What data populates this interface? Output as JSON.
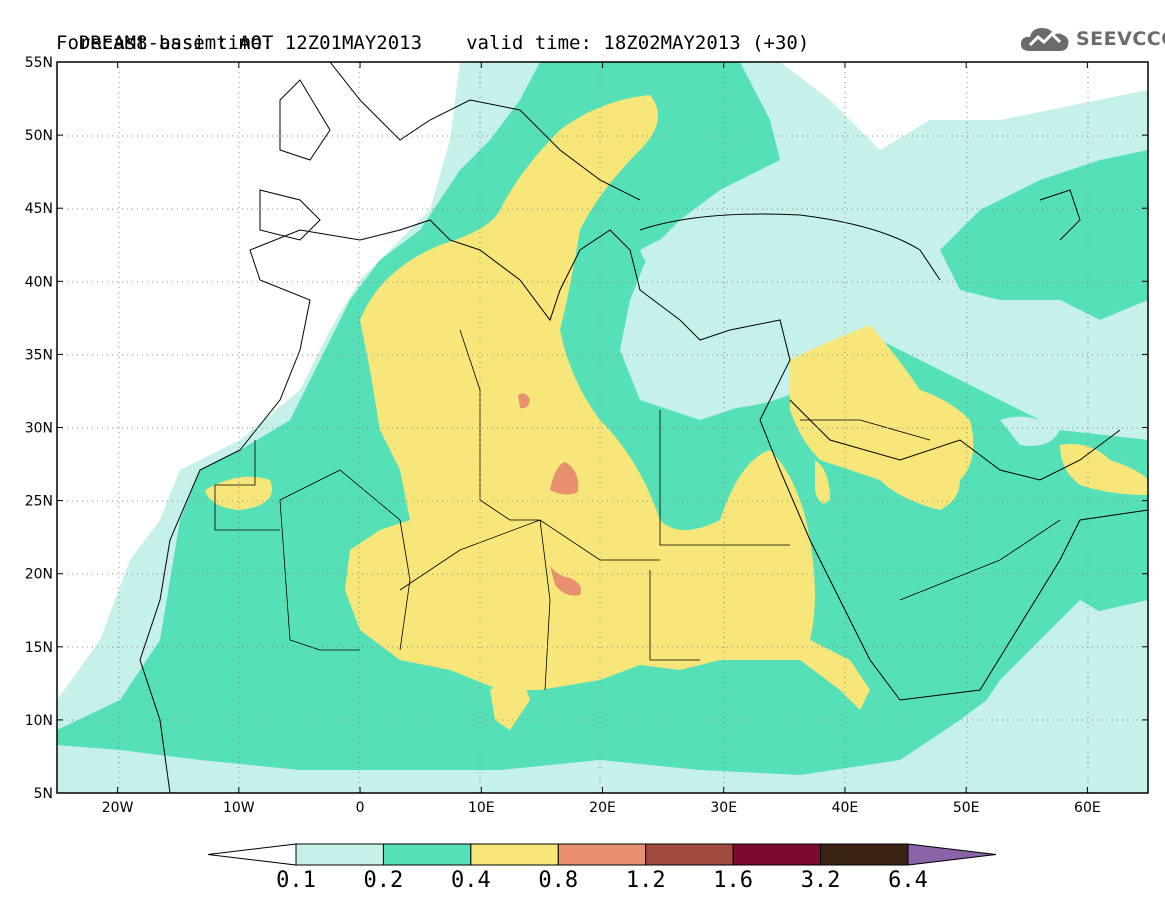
{
  "header": {
    "title_line1": "DREAM8-assim: AOT",
    "base_time_label": "Forecast base time:",
    "base_time": "12Z01MAY2013",
    "valid_time_label": "valid time:",
    "valid_time": "18Z02MAY2013 (+30)"
  },
  "logo": {
    "text": "SEEVCCC",
    "color": "#6b6b6b"
  },
  "map": {
    "lon_range": [
      -25,
      65
    ],
    "lat_range": [
      5,
      55
    ],
    "lat_ticks": [
      "55N",
      "50N",
      "45N",
      "40N",
      "35N",
      "30N",
      "25N",
      "20N",
      "15N",
      "10N",
      "5N"
    ],
    "lon_ticks": [
      "20W",
      "10W",
      "0",
      "10E",
      "20E",
      "30E",
      "40E",
      "50E",
      "60E"
    ],
    "grid": "dotted"
  },
  "colorbar": {
    "levels": [
      "0.1",
      "0.2",
      "0.4",
      "0.8",
      "1.2",
      "1.6",
      "3.2",
      "6.4"
    ],
    "colors": [
      "#ffffff",
      "#c6f0ea",
      "#55e0b8",
      "#f7e67a",
      "#e99070",
      "#a14a3e",
      "#7c0a2e",
      "#3b2414",
      "#8a63a8"
    ]
  }
}
